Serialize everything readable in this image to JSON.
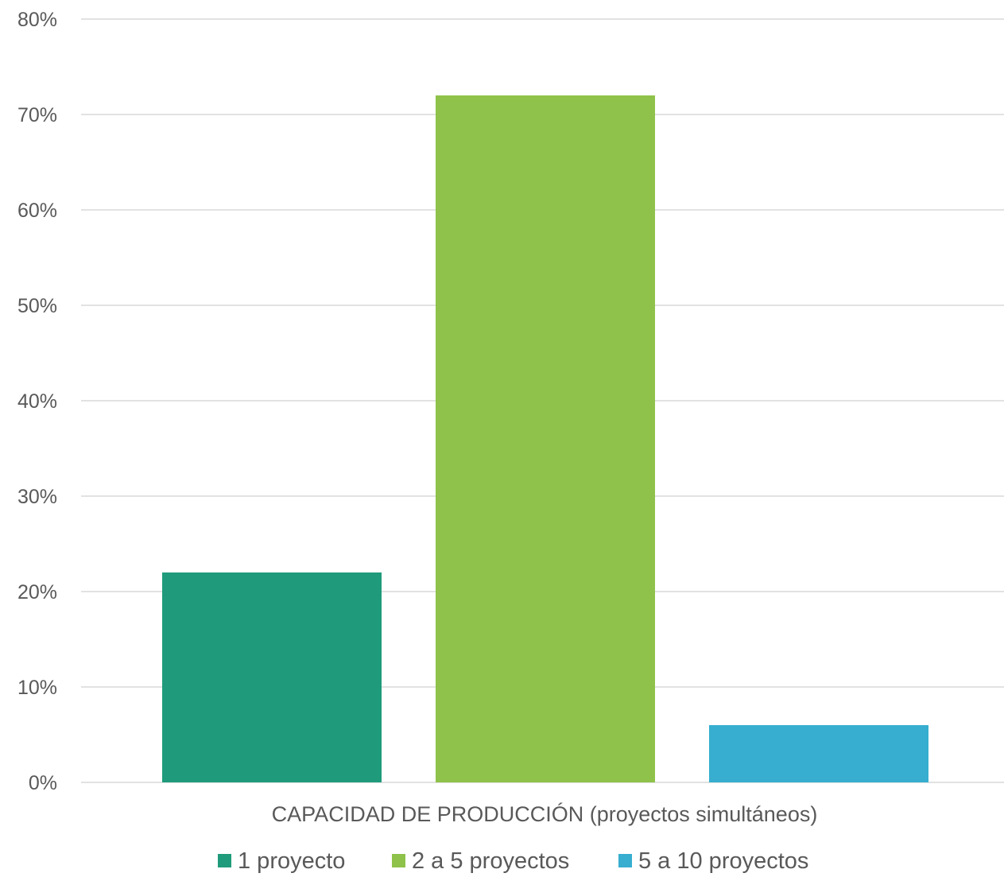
{
  "chart_data": {
    "type": "bar",
    "category_label": "CAPACIDAD DE PRODUCCIÓN (proyectos simultáneos)",
    "series": [
      {
        "name": "1 proyecto",
        "value": 22,
        "color": "#1f9b7b"
      },
      {
        "name": "2 a 5 proyectos",
        "value": 72,
        "color": "#8fc24a"
      },
      {
        "name": "5 a 10 proyectos",
        "value": 6,
        "color": "#37aed0"
      }
    ],
    "y_ticks": [
      "0%",
      "10%",
      "20%",
      "30%",
      "40%",
      "50%",
      "60%",
      "70%",
      "80%"
    ],
    "ylim": [
      0,
      80
    ],
    "y_unit": "%",
    "grid": true,
    "legend_position": "bottom",
    "gridline_color": "#d9d9d9"
  }
}
